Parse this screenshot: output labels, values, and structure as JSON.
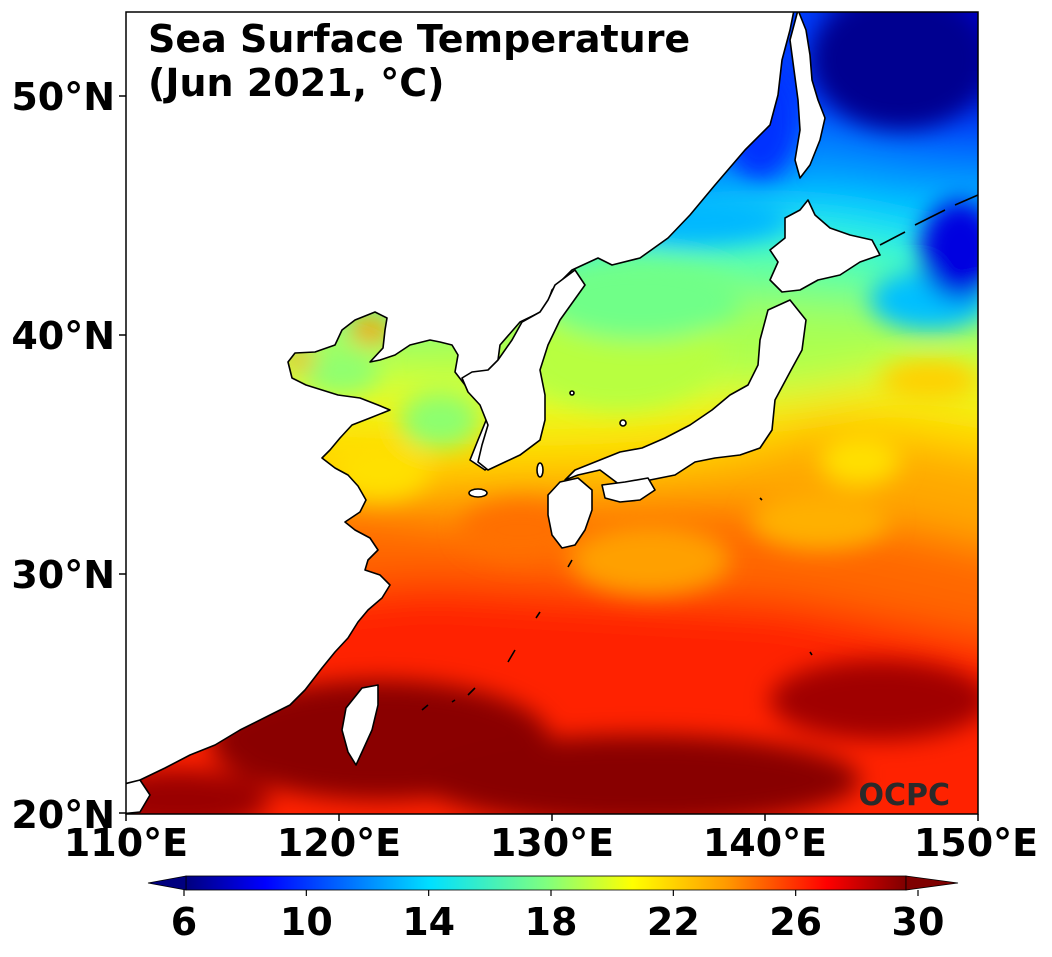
{
  "title": {
    "line1": "Sea Surface Temperature",
    "line2": "(Jun 2021, °C)"
  },
  "watermark": "OCPC",
  "axes": {
    "lat_labels": [
      "50°N",
      "40°N",
      "30°N",
      "20°N"
    ],
    "lon_labels": [
      "110°E",
      "120°E",
      "130°E",
      "140°E",
      "150°E"
    ],
    "lon_range": [
      110,
      150
    ],
    "lat_range": [
      20,
      53.5
    ]
  },
  "colorbar": {
    "min": 5,
    "max": 31,
    "ticks": [
      "6",
      "10",
      "14",
      "18",
      "22",
      "26",
      "30"
    ],
    "colormap": "jet",
    "extend": "both"
  },
  "colors": {
    "land": "#ffffff",
    "coastline": "#000000",
    "cold": "#00007f",
    "warm": "#7f0000"
  }
}
